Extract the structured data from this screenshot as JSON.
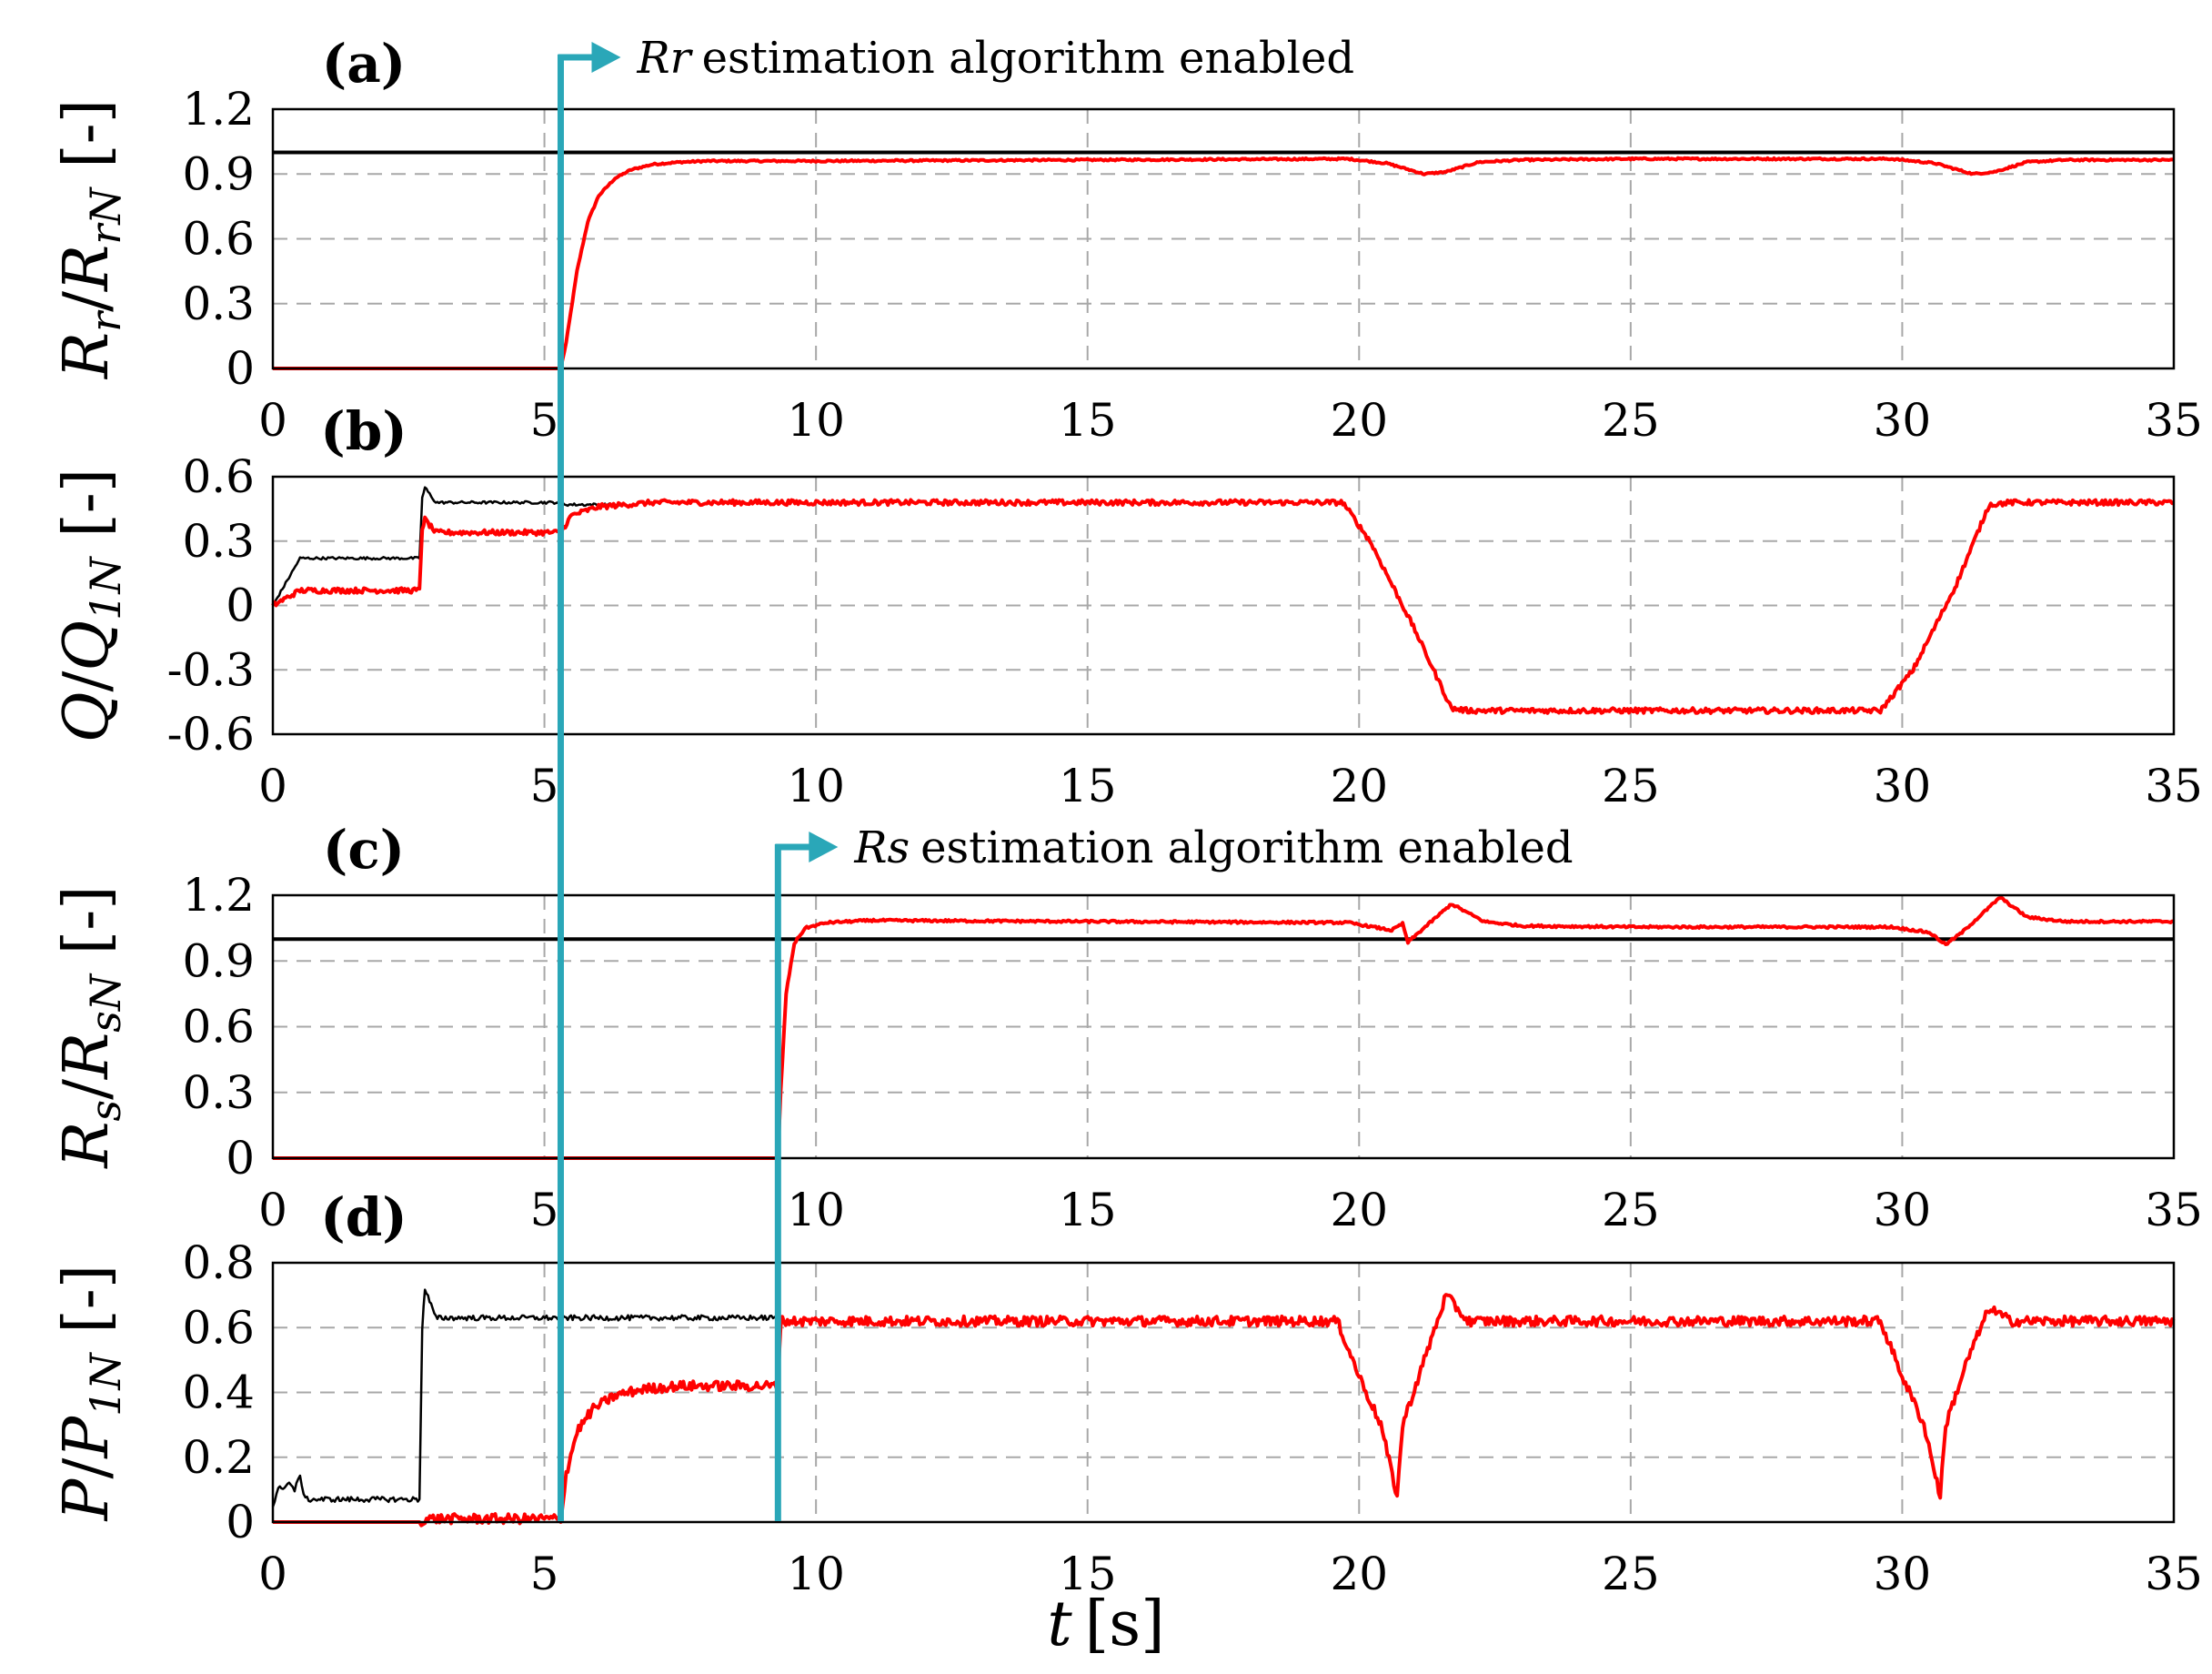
{
  "colors": {
    "estimate": "#ff0000",
    "reference": "#000000",
    "marker": "#2aa7b8",
    "grid": "#a8a8a8"
  },
  "figure": {
    "xlabel_var": "t",
    "xlabel_unit": "[s]",
    "annotations": [
      {
        "var": "Rr",
        "text": "estimation algorithm enabled",
        "t": 5.3
      },
      {
        "var": "Rs",
        "text": "estimation algorithm enabled",
        "t": 9.3
      }
    ]
  },
  "chart_data": [
    {
      "type": "line",
      "panel_label": "(a)",
      "ylabel_main": "R",
      "ylabel_sub": "r",
      "ylabel_den": "R",
      "ylabel_den_sub": "rN",
      "ylabel_unit": "[-]",
      "xlim": [
        0,
        35
      ],
      "ylim": [
        0,
        1.2
      ],
      "xticks": [
        "0",
        "5",
        "10",
        "15",
        "20",
        "25",
        "30",
        "35"
      ],
      "yticks": [
        "0",
        "0.3",
        "0.6",
        "0.9",
        "1.2"
      ],
      "grid": true,
      "series": [
        {
          "role": "reference",
          "x": [
            0,
            35
          ],
          "y": [
            1.0,
            1.0
          ]
        },
        {
          "role": "estimate",
          "x": [
            0,
            5.3,
            5.4,
            5.6,
            5.8,
            6.0,
            6.3,
            6.6,
            7.0,
            7.5,
            8,
            10,
            15,
            19.8,
            20.5,
            21.2,
            21.6,
            22.2,
            23,
            25,
            29.8,
            30.6,
            31.3,
            31.7,
            32.3,
            33,
            35
          ],
          "y": [
            0,
            0,
            0.12,
            0.45,
            0.68,
            0.8,
            0.88,
            0.92,
            0.945,
            0.955,
            0.96,
            0.96,
            0.965,
            0.97,
            0.95,
            0.9,
            0.91,
            0.955,
            0.965,
            0.97,
            0.97,
            0.95,
            0.9,
            0.91,
            0.955,
            0.965,
            0.965
          ],
          "noise": 0.004
        }
      ]
    },
    {
      "type": "line",
      "panel_label": "(b)",
      "ylabel_main": "Q",
      "ylabel_sub": "",
      "ylabel_den": "Q",
      "ylabel_den_sub": "1N",
      "ylabel_unit": "[-]",
      "xlim": [
        0,
        35
      ],
      "ylim": [
        -0.6,
        0.6
      ],
      "xticks": [
        "0",
        "5",
        "10",
        "15",
        "20",
        "25",
        "30",
        "35"
      ],
      "yticks": [
        "-0.6",
        "-0.3",
        "0",
        "0.3",
        "0.6"
      ],
      "grid": true,
      "series": [
        {
          "role": "reference",
          "x": [
            0,
            0.5,
            2.7,
            2.75,
            2.8,
            3.0,
            5.3,
            5.4,
            6.5
          ],
          "y": [
            0,
            0.22,
            0.22,
            0.5,
            0.55,
            0.48,
            0.48,
            0.47,
            0.47
          ],
          "noise": 0.006
        },
        {
          "role": "estimate",
          "x": [
            0,
            0.5,
            2.7,
            2.75,
            2.8,
            3.0,
            5.3,
            5.5,
            6,
            7,
            19.7,
            20.2,
            21,
            21.7,
            22,
            25,
            29.6,
            30.2,
            31,
            31.6,
            32,
            35
          ],
          "y": [
            0,
            0.07,
            0.07,
            0.36,
            0.4,
            0.34,
            0.34,
            0.42,
            0.46,
            0.48,
            0.48,
            0.3,
            -0.1,
            -0.48,
            -0.49,
            -0.49,
            -0.49,
            -0.3,
            0.1,
            0.47,
            0.48,
            0.48
          ],
          "noise": 0.012
        }
      ]
    },
    {
      "type": "line",
      "panel_label": "(c)",
      "ylabel_main": "R",
      "ylabel_sub": "s",
      "ylabel_den": "R",
      "ylabel_den_sub": "sN",
      "ylabel_unit": "[-]",
      "xlim": [
        0,
        35
      ],
      "ylim": [
        0,
        1.2
      ],
      "xticks": [
        "0",
        "5",
        "10",
        "15",
        "20",
        "25",
        "30",
        "35"
      ],
      "yticks": [
        "0",
        "0.3",
        "0.6",
        "0.9",
        "1.2"
      ],
      "grid": true,
      "series": [
        {
          "role": "reference",
          "x": [
            0,
            35
          ],
          "y": [
            1.0,
            1.0
          ]
        },
        {
          "role": "estimate",
          "x": [
            0,
            9.3,
            9.35,
            9.45,
            9.6,
            9.8,
            10.2,
            11,
            15,
            19.8,
            20.6,
            20.8,
            20.9,
            21.1,
            21.7,
            22.3,
            23,
            25,
            29.8,
            30.5,
            30.8,
            31.1,
            31.8,
            32.3,
            33,
            35
          ],
          "y": [
            0,
            0,
            0.3,
            0.75,
            0.98,
            1.05,
            1.075,
            1.085,
            1.08,
            1.075,
            1.04,
            1.07,
            0.985,
            1.03,
            1.16,
            1.08,
            1.06,
            1.055,
            1.055,
            1.03,
            0.975,
            1.03,
            1.19,
            1.1,
            1.08,
            1.08
          ],
          "noise": 0.005
        }
      ]
    },
    {
      "type": "line",
      "panel_label": "(d)",
      "ylabel_main": "P",
      "ylabel_sub": "",
      "ylabel_den": "P",
      "ylabel_den_sub": "1N",
      "ylabel_unit": "[-]",
      "xlim": [
        0,
        35
      ],
      "ylim": [
        0,
        0.8
      ],
      "xticks": [
        "0",
        "5",
        "10",
        "15",
        "20",
        "25",
        "30",
        "35"
      ],
      "yticks": [
        "0",
        "0.2",
        "0.4",
        "0.6",
        "0.8"
      ],
      "grid": true,
      "series": [
        {
          "role": "reference",
          "x": [
            0,
            0.1,
            0.3,
            0.4,
            0.5,
            0.6,
            2.7,
            2.75,
            2.8,
            3.0,
            9.3,
            9.35,
            9.5
          ],
          "y": [
            0.05,
            0.1,
            0.12,
            0.1,
            0.14,
            0.07,
            0.07,
            0.6,
            0.72,
            0.63,
            0.63,
            0.62,
            0.62
          ],
          "noise": 0.008
        },
        {
          "role": "estimate",
          "x": [
            0,
            2.7,
            2.8,
            5.3,
            5.4,
            5.6,
            5.9,
            6.3,
            6.8,
            7.5,
            9.3,
            9.35,
            9.6,
            19.6,
            20.0,
            20.4,
            20.7,
            20.8,
            21.2,
            21.6,
            22,
            25,
            29.6,
            30.0,
            30.4,
            30.7,
            30.8,
            31.2,
            31.6,
            32,
            35
          ],
          "y": [
            0,
            0,
            0.01,
            0.01,
            0.15,
            0.28,
            0.35,
            0.39,
            0.41,
            0.42,
            0.42,
            0.62,
            0.62,
            0.62,
            0.45,
            0.3,
            0.08,
            0.3,
            0.5,
            0.7,
            0.62,
            0.62,
            0.62,
            0.45,
            0.3,
            0.08,
            0.3,
            0.5,
            0.66,
            0.62,
            0.62
          ],
          "noise": 0.015
        }
      ]
    }
  ]
}
